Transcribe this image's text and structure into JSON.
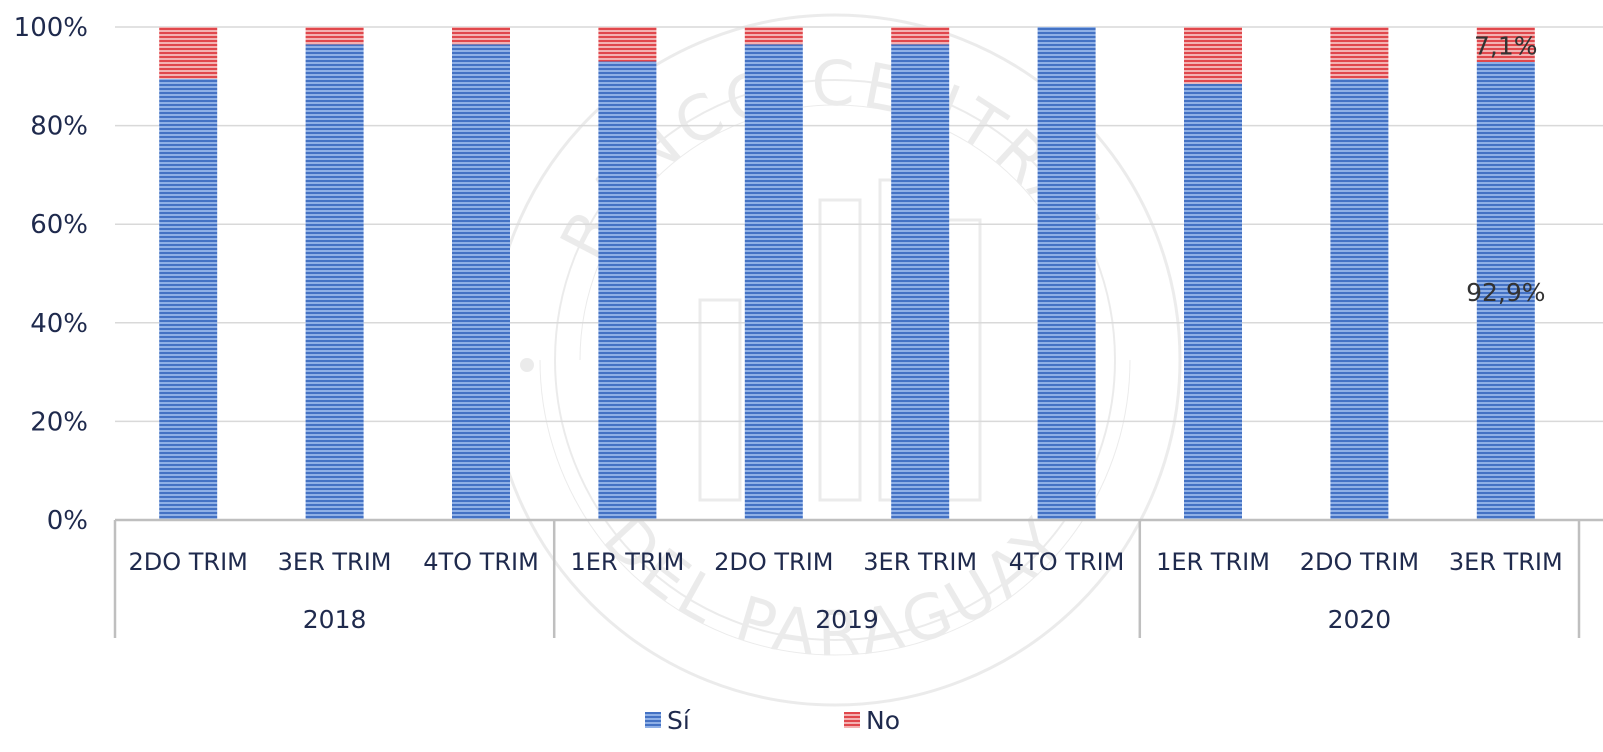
{
  "chart_data": {
    "type": "bar",
    "stacked": "percent",
    "years": [
      {
        "label": "2018",
        "quarters": [
          "2DO TRIM",
          "3ER TRIM",
          "4TO TRIM"
        ]
      },
      {
        "label": "2019",
        "quarters": [
          "1ER TRIM",
          "2DO TRIM",
          "3ER TRIM",
          "4TO TRIM"
        ]
      },
      {
        "label": "2020",
        "quarters": [
          "1ER TRIM",
          "2DO TRIM",
          "3ER TRIM"
        ]
      }
    ],
    "series": [
      {
        "name": "Sí",
        "color": "#4472C4",
        "values": [
          89.5,
          96.5,
          96.5,
          93.0,
          96.5,
          96.5,
          100.0,
          88.5,
          89.5,
          92.9
        ]
      },
      {
        "name": "No",
        "color": "#E0474C",
        "values": [
          10.5,
          3.5,
          3.5,
          7.0,
          3.5,
          3.5,
          0.0,
          11.5,
          10.5,
          7.1
        ]
      }
    ],
    "data_labels": [
      {
        "series": "No",
        "index": 9,
        "text": "7,1%"
      },
      {
        "series": "Sí",
        "index": 9,
        "text": "92,9%"
      }
    ],
    "y_ticks": [
      "0%",
      "20%",
      "40%",
      "60%",
      "80%",
      "100%"
    ],
    "ylim": [
      0,
      100
    ],
    "grid": true,
    "legend": "bottom-center"
  },
  "watermark": {
    "top_text": "BANCO CENTRAL",
    "bottom_text": "DEL PARAGUAY"
  }
}
